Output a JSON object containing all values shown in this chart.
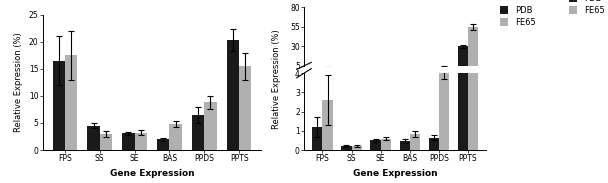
{
  "categories": [
    "FPS",
    "SS",
    "SE",
    "BAS",
    "PPDS",
    "PPTS"
  ],
  "left": {
    "pdb_values": [
      16.5,
      4.5,
      3.1,
      2.0,
      6.5,
      20.3
    ],
    "fe65_values": [
      17.5,
      3.0,
      3.2,
      4.8,
      8.8,
      15.5
    ],
    "pdb_errors": [
      4.5,
      0.5,
      0.3,
      0.3,
      1.5,
      2.0
    ],
    "fe65_errors": [
      4.5,
      0.5,
      0.5,
      0.5,
      1.2,
      2.5
    ],
    "ylim": [
      0,
      25
    ],
    "yticks": [
      0,
      5,
      10,
      15,
      20,
      25
    ],
    "ylabel": "Relative Expression (%)",
    "xlabel": "Gene Expression"
  },
  "right": {
    "pdb_values": [
      1.2,
      0.2,
      0.5,
      0.45,
      0.65,
      30.0
    ],
    "fe65_values": [
      2.6,
      0.2,
      0.6,
      0.85,
      4.0,
      55.0
    ],
    "pdb_errors": [
      0.5,
      0.05,
      0.1,
      0.1,
      0.15,
      1.5
    ],
    "fe65_errors": [
      1.3,
      0.05,
      0.1,
      0.15,
      0.3,
      3.5
    ],
    "lo_ylim": [
      0,
      4
    ],
    "lo_yticks": [
      0,
      1,
      2,
      3,
      4
    ],
    "hi_ylim": [
      5,
      80
    ],
    "hi_yticks": [
      5,
      30,
      55,
      80
    ],
    "ylabel": "Relative Expression (%)",
    "xlabel": "Gene Expression"
  },
  "legend_labels": [
    "PDB",
    "FE65"
  ],
  "bar_colors": [
    "#1a1a1a",
    "#b0b0b0"
  ],
  "bar_width": 0.35,
  "error_capsize": 2
}
